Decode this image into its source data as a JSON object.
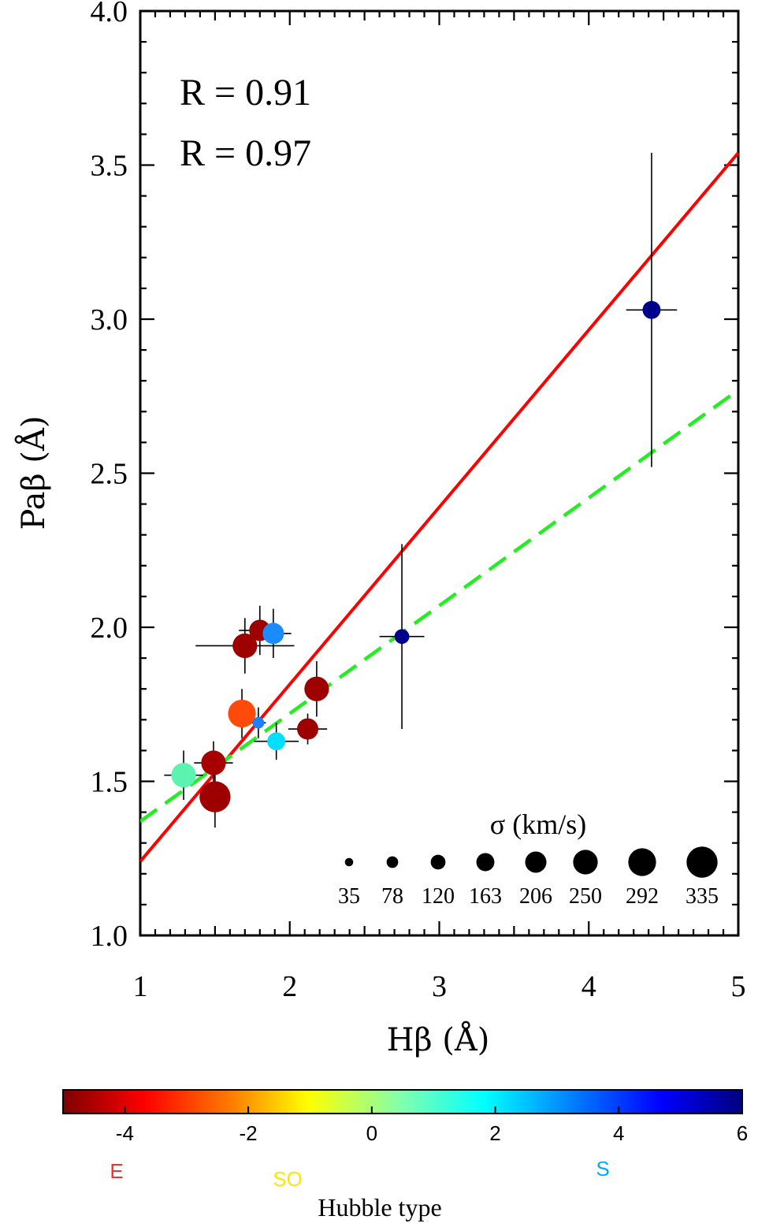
{
  "chart_data": {
    "type": "scatter",
    "xlabel": "Hβ (Å)",
    "ylabel": "Paβ (Å)",
    "xlim": [
      1,
      5
    ],
    "ylim": [
      1.0,
      4.0
    ],
    "x_ticks": [
      "1",
      "2",
      "3",
      "4",
      "5"
    ],
    "y_ticks": [
      "1.0",
      "1.5",
      "2.0",
      "2.5",
      "3.0",
      "3.5",
      "4.0"
    ],
    "annotations": [
      "R = 0.91",
      "R = 0.97"
    ],
    "points": [
      {
        "x": 1.29,
        "y": 1.52,
        "xerr": 0.13,
        "yerr": 0.08,
        "sigma": 250,
        "color": "#5cf2b0"
      },
      {
        "x": 1.5,
        "y": 1.45,
        "xerr": 0.05,
        "yerr": 0.1,
        "sigma": 335,
        "color": "#9e0000"
      },
      {
        "x": 1.49,
        "y": 1.56,
        "xerr": 0.13,
        "yerr": 0.07,
        "sigma": 250,
        "color": "#a60000"
      },
      {
        "x": 1.68,
        "y": 1.72,
        "xerr": 0.05,
        "yerr": 0.08,
        "sigma": 292,
        "color": "#ff4a0a"
      },
      {
        "x": 1.79,
        "y": 1.69,
        "xerr": 0.05,
        "yerr": 0.05,
        "sigma": 78,
        "color": "#1e7fff"
      },
      {
        "x": 1.91,
        "y": 1.63,
        "xerr": 0.15,
        "yerr": 0.06,
        "sigma": 163,
        "color": "#00dfff"
      },
      {
        "x": 2.12,
        "y": 1.67,
        "xerr": 0.13,
        "yerr": 0.05,
        "sigma": 206,
        "color": "#9e0000"
      },
      {
        "x": 2.18,
        "y": 1.8,
        "xerr": 0.08,
        "yerr": 0.09,
        "sigma": 250,
        "color": "#9e0000"
      },
      {
        "x": 1.7,
        "y": 1.94,
        "xerr": 0.33,
        "yerr": 0.09,
        "sigma": 250,
        "color": "#9e0000"
      },
      {
        "x": 1.8,
        "y": 1.99,
        "xerr": 0.14,
        "yerr": 0.08,
        "sigma": 206,
        "color": "#9e0000"
      },
      {
        "x": 1.89,
        "y": 1.98,
        "xerr": 0.12,
        "yerr": 0.08,
        "sigma": 206,
        "color": "#1a8cff"
      },
      {
        "x": 2.75,
        "y": 1.97,
        "xerr": 0.15,
        "yerr": 0.3,
        "sigma": 120,
        "color": "#00008b"
      },
      {
        "x": 4.42,
        "y": 3.03,
        "xerr": 0.17,
        "yerr": 0.51,
        "sigma": 163,
        "color": "#00008b"
      }
    ],
    "fits": [
      {
        "name": "solid",
        "style": "solid",
        "color": "#ff0000",
        "x": [
          1,
          5
        ],
        "y": [
          1.24,
          3.54
        ]
      },
      {
        "name": "dashed",
        "style": "dashed",
        "color": "#22ee22",
        "x": [
          1,
          5
        ],
        "y": [
          1.37,
          2.77
        ]
      }
    ],
    "sigma_legend": {
      "title": "σ (km/s)",
      "values": [
        35,
        78,
        120,
        163,
        206,
        250,
        292,
        335
      ],
      "labels": [
        "35",
        "78",
        "120",
        "163",
        "206",
        "250",
        "292",
        "335"
      ]
    },
    "colorbar": {
      "title": "Hubble type",
      "range": [
        -5,
        6
      ],
      "ticks": [
        -4,
        -2,
        0,
        2,
        4,
        6
      ],
      "tick_labels": [
        "-4",
        "-2",
        "0",
        "2",
        "4",
        "6"
      ],
      "classes": [
        {
          "label": "E",
          "range": [
            -5,
            -3
          ],
          "label_color": "#ff2a2a"
        },
        {
          "label": "SO",
          "range": [
            -3,
            0
          ],
          "label_color": "#ffe600"
        },
        {
          "label": "S",
          "range": [
            0,
            6
          ],
          "label_color": "#00aaff"
        }
      ]
    }
  }
}
